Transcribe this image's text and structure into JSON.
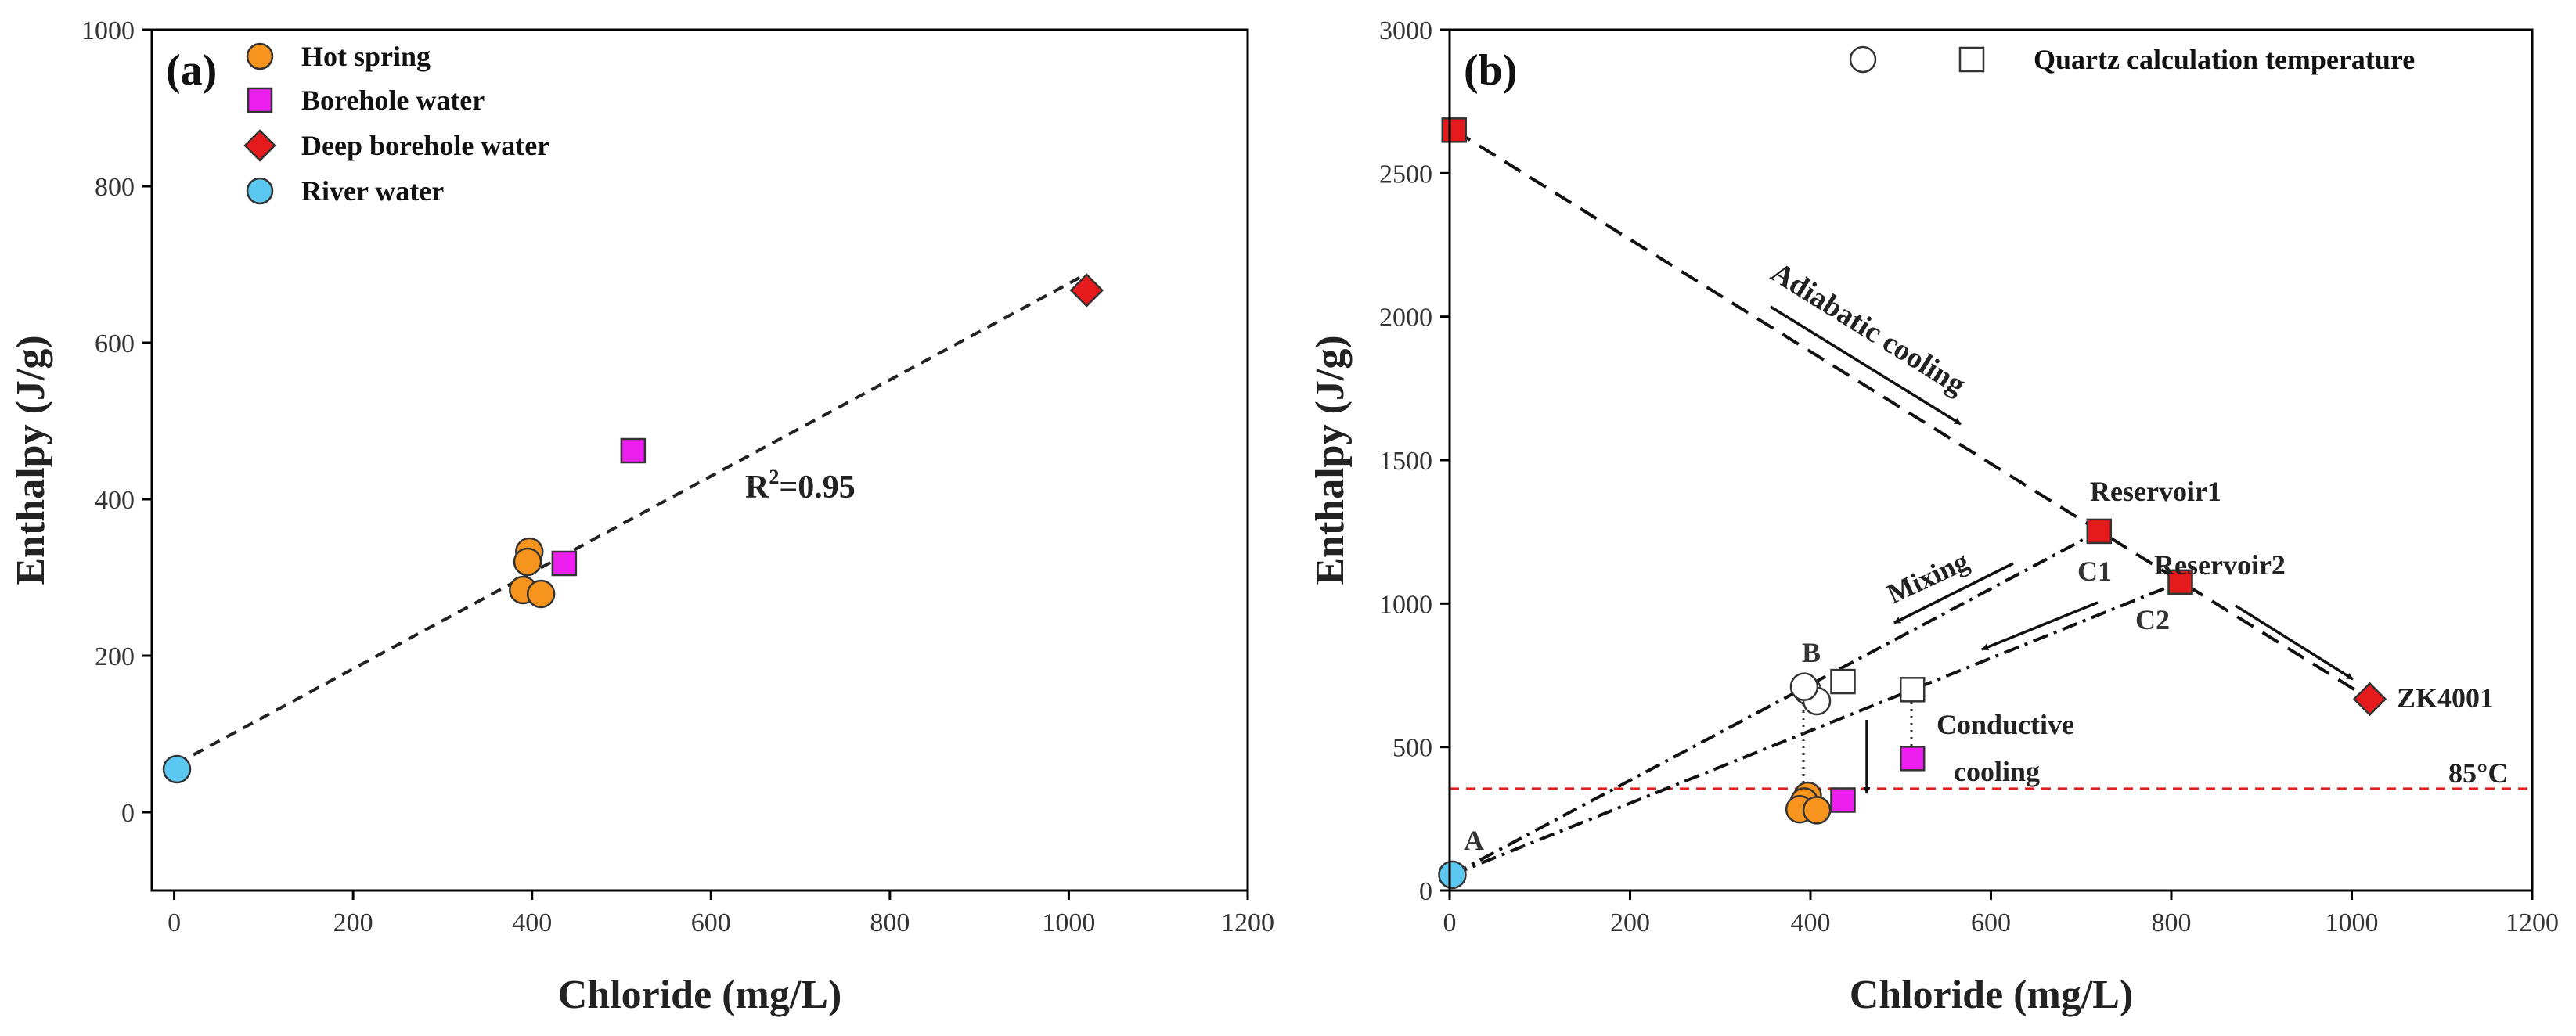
{
  "chart_data": [
    {
      "panel": "(a)",
      "type": "scatter",
      "xlabel": "Chloride (mg/L)",
      "ylabel": "Enthalpy (J/g)",
      "xlim": [
        -25,
        1200
      ],
      "ylim": [
        -100,
        1000
      ],
      "xticks": [
        0,
        200,
        400,
        600,
        800,
        1000,
        1200
      ],
      "yticks": [
        0,
        200,
        400,
        600,
        800,
        1000
      ],
      "legend_position": "top-left",
      "legend": [
        {
          "label": "Hot spring",
          "marker": "circle",
          "color": "#f7941d"
        },
        {
          "label": "Borehole water",
          "marker": "square",
          "color": "#ec1ef0"
        },
        {
          "label": "Deep borehole water",
          "marker": "diamond",
          "color": "#e41a1c"
        },
        {
          "label": "River water",
          "marker": "circle",
          "color": "#5ac8f0"
        }
      ],
      "series": [
        {
          "name": "Hot spring",
          "points": [
            [
              397,
              333
            ],
            [
              395,
              320
            ],
            [
              390,
              284
            ],
            [
              410,
              279
            ]
          ]
        },
        {
          "name": "Borehole water",
          "points": [
            [
              513,
              462
            ],
            [
              436,
              318
            ]
          ]
        },
        {
          "name": "Deep borehole water",
          "points": [
            [
              1020,
              667
            ]
          ]
        },
        {
          "name": "River water",
          "points": [
            [
              3,
              55
            ]
          ]
        }
      ],
      "fit_line": {
        "x": [
          3,
          1020
        ],
        "y": [
          62,
          688
        ],
        "style": "dashed"
      },
      "annotation": {
        "text": "R",
        "sup": "2",
        "tail": "=0.95",
        "x": 640,
        "y": 410
      }
    },
    {
      "panel": "(b)",
      "type": "scatter",
      "xlabel": "Chloride (mg/L)",
      "ylabel": "Enthalpy (J/g)",
      "xlim": [
        0,
        1200
      ],
      "ylim": [
        0,
        3000
      ],
      "xticks": [
        0,
        200,
        400,
        600,
        800,
        1000,
        1200
      ],
      "yticks": [
        0,
        500,
        1000,
        1500,
        2000,
        2500,
        3000
      ],
      "legend_text": "Quartz calculation temperature",
      "points": {
        "reservoir": [
          [
            5,
            2650
          ],
          [
            720,
            1252
          ],
          [
            810,
            1075
          ]
        ],
        "deep_borehole": [
          [
            1020,
            667
          ]
        ],
        "hot_spring": [
          [
            397,
            330
          ],
          [
            393,
            310
          ],
          [
            388,
            283
          ],
          [
            407,
            280
          ]
        ],
        "borehole": [
          [
            513,
            460
          ],
          [
            436,
            315
          ]
        ],
        "river": [
          [
            3,
            55
          ]
        ],
        "quartz_circle": [
          [
            397,
            695
          ],
          [
            407,
            660
          ],
          [
            393,
            710
          ]
        ],
        "quartz_square": [
          [
            436,
            728
          ],
          [
            513,
            700
          ]
        ]
      },
      "lines": {
        "adiabatic": [
          [
            5,
            2650
          ],
          [
            1020,
            667
          ]
        ],
        "mixing_c1": [
          [
            3,
            55
          ],
          [
            720,
            1252
          ]
        ],
        "mixing_c2": [
          [
            3,
            55
          ],
          [
            810,
            1075
          ]
        ],
        "isotherm_85": 355
      },
      "texts": {
        "adiabatic_cooling": "Adiabatic cooling",
        "reservoir1": "Reservoir1",
        "reservoir2": "Reservoir2",
        "c1": "C1",
        "c2": "C2",
        "mixing": "Mixing",
        "conductive": "Conductive",
        "cooling": "cooling",
        "zk4001": "ZK4001",
        "iso": "85°C",
        "a": "A",
        "b": "B"
      }
    }
  ]
}
